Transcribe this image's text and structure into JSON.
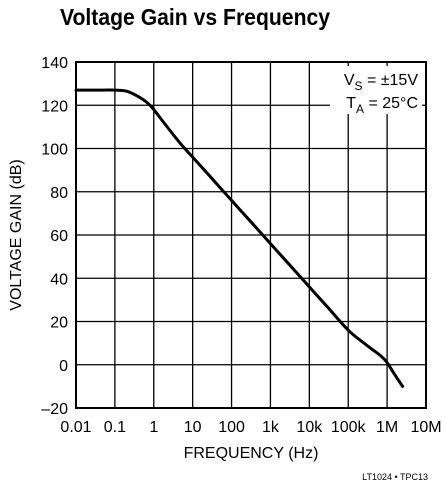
{
  "chart_data": {
    "type": "line",
    "title": "Voltage Gain vs Frequency",
    "xlabel": "FREQUENCY (Hz)",
    "ylabel": "VOLTAGE GAIN (dB)",
    "x_scale": "log",
    "xlim": [
      0.01,
      10000000
    ],
    "ylim": [
      -20,
      140
    ],
    "x_ticks": [
      {
        "value": 0.01,
        "label": "0.01"
      },
      {
        "value": 0.1,
        "label": "0.1"
      },
      {
        "value": 1,
        "label": "1"
      },
      {
        "value": 10,
        "label": "10"
      },
      {
        "value": 100,
        "label": "100"
      },
      {
        "value": 1000,
        "label": "1k"
      },
      {
        "value": 10000,
        "label": "10k"
      },
      {
        "value": 100000,
        "label": "100k"
      },
      {
        "value": 1000000,
        "label": "1M"
      },
      {
        "value": 10000000,
        "label": "10M"
      }
    ],
    "y_ticks": [
      {
        "value": 140,
        "label": "140"
      },
      {
        "value": 120,
        "label": "120"
      },
      {
        "value": 100,
        "label": "100"
      },
      {
        "value": 80,
        "label": "80"
      },
      {
        "value": 60,
        "label": "60"
      },
      {
        "value": 40,
        "label": "40"
      },
      {
        "value": 20,
        "label": "20"
      },
      {
        "value": 0,
        "label": "0"
      },
      {
        "value": -20,
        "label": "–20"
      }
    ],
    "grid": true,
    "series": [
      {
        "color": "#000000",
        "x": [
          0.01,
          0.05,
          0.1,
          0.2,
          0.4,
          0.7,
          1,
          2,
          5,
          10,
          30,
          100,
          300,
          1000,
          3000,
          10000,
          30000,
          100000,
          300000,
          700000,
          1000000,
          1500000,
          2500000
        ],
        "y": [
          127,
          127,
          127,
          126.5,
          124,
          121,
          118,
          111,
          102,
          96,
          86.5,
          76,
          66.5,
          56,
          46.5,
          36,
          26.5,
          16,
          9,
          4,
          1,
          -4,
          -10
        ]
      }
    ],
    "annotations": [
      {
        "base": "V",
        "sub": "S",
        "rest": " = ±15V"
      },
      {
        "base": "T",
        "sub": "A",
        "rest": " = 25°C"
      }
    ],
    "legend_position": "top-right"
  },
  "figure_code": "LT1024 • TPC13"
}
